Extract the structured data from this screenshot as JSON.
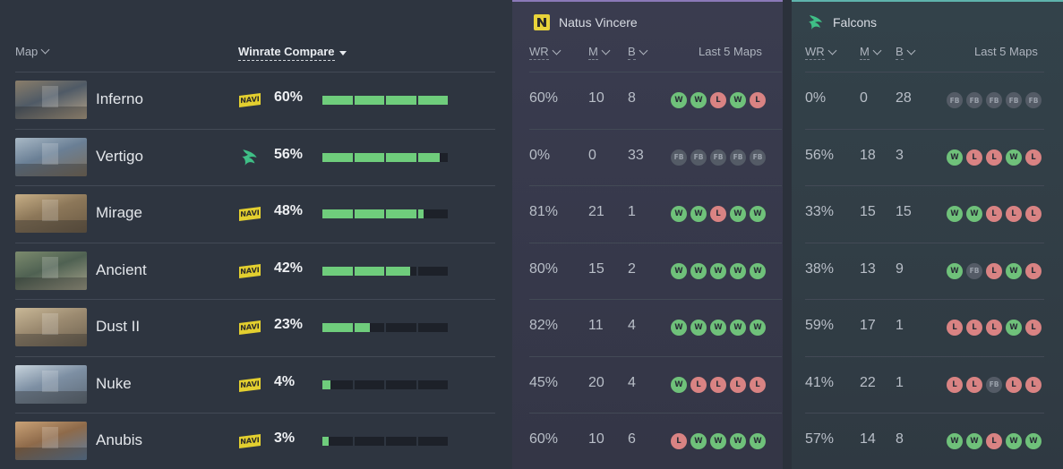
{
  "columns": {
    "map": "Map",
    "winrate_compare": "Winrate Compare",
    "wr": "WR",
    "m": "M",
    "b": "B",
    "last5": "Last 5 Maps"
  },
  "teams": [
    {
      "name": "Natus Vincere",
      "icon": "navi-logo-icon",
      "accent": "#8a79b8"
    },
    {
      "name": "Falcons",
      "icon": "falcons-logo-icon",
      "accent": "#5fb3ad"
    }
  ],
  "colors": {
    "win": "#6fc17a",
    "loss": "#d98383",
    "first_ban": "#545b66",
    "bar_fill": "#6fcd7c"
  },
  "rows": [
    {
      "map": "Inferno",
      "fav": "navi",
      "winrate": "60%",
      "fill": 1.0,
      "navi": {
        "wr": "60%",
        "m": "10",
        "b": "8",
        "last": [
          "W",
          "W",
          "L",
          "W",
          "L"
        ]
      },
      "fal": {
        "wr": "0%",
        "m": "0",
        "b": "28",
        "last": [
          "FB",
          "FB",
          "FB",
          "FB",
          "FB"
        ]
      }
    },
    {
      "map": "Vertigo",
      "fav": "fal",
      "winrate": "56%",
      "fill": 0.93,
      "navi": {
        "wr": "0%",
        "m": "0",
        "b": "33",
        "last": [
          "FB",
          "FB",
          "FB",
          "FB",
          "FB"
        ]
      },
      "fal": {
        "wr": "56%",
        "m": "18",
        "b": "3",
        "last": [
          "W",
          "L",
          "L",
          "W",
          "L"
        ]
      }
    },
    {
      "map": "Mirage",
      "fav": "navi",
      "winrate": "48%",
      "fill": 0.8,
      "navi": {
        "wr": "81%",
        "m": "21",
        "b": "1",
        "last": [
          "W",
          "W",
          "L",
          "W",
          "W"
        ]
      },
      "fal": {
        "wr": "33%",
        "m": "15",
        "b": "15",
        "last": [
          "W",
          "W",
          "L",
          "L",
          "L"
        ]
      }
    },
    {
      "map": "Ancient",
      "fav": "navi",
      "winrate": "42%",
      "fill": 0.7,
      "navi": {
        "wr": "80%",
        "m": "15",
        "b": "2",
        "last": [
          "W",
          "W",
          "W",
          "W",
          "W"
        ]
      },
      "fal": {
        "wr": "38%",
        "m": "13",
        "b": "9",
        "last": [
          "W",
          "FB",
          "L",
          "W",
          "L"
        ]
      }
    },
    {
      "map": "Dust II",
      "fav": "navi",
      "winrate": "23%",
      "fill": 0.38,
      "navi": {
        "wr": "82%",
        "m": "11",
        "b": "4",
        "last": [
          "W",
          "W",
          "W",
          "W",
          "W"
        ]
      },
      "fal": {
        "wr": "59%",
        "m": "17",
        "b": "1",
        "last": [
          "L",
          "L",
          "L",
          "W",
          "L"
        ]
      }
    },
    {
      "map": "Nuke",
      "fav": "navi",
      "winrate": "4%",
      "fill": 0.07,
      "navi": {
        "wr": "45%",
        "m": "20",
        "b": "4",
        "last": [
          "W",
          "L",
          "L",
          "L",
          "L"
        ]
      },
      "fal": {
        "wr": "41%",
        "m": "22",
        "b": "1",
        "last": [
          "L",
          "L",
          "FB",
          "L",
          "L"
        ]
      }
    },
    {
      "map": "Anubis",
      "fav": "navi",
      "winrate": "3%",
      "fill": 0.05,
      "navi": {
        "wr": "60%",
        "m": "10",
        "b": "6",
        "last": [
          "L",
          "W",
          "W",
          "W",
          "W"
        ]
      },
      "fal": {
        "wr": "57%",
        "m": "14",
        "b": "8",
        "last": [
          "W",
          "W",
          "L",
          "W",
          "W"
        ]
      }
    }
  ]
}
